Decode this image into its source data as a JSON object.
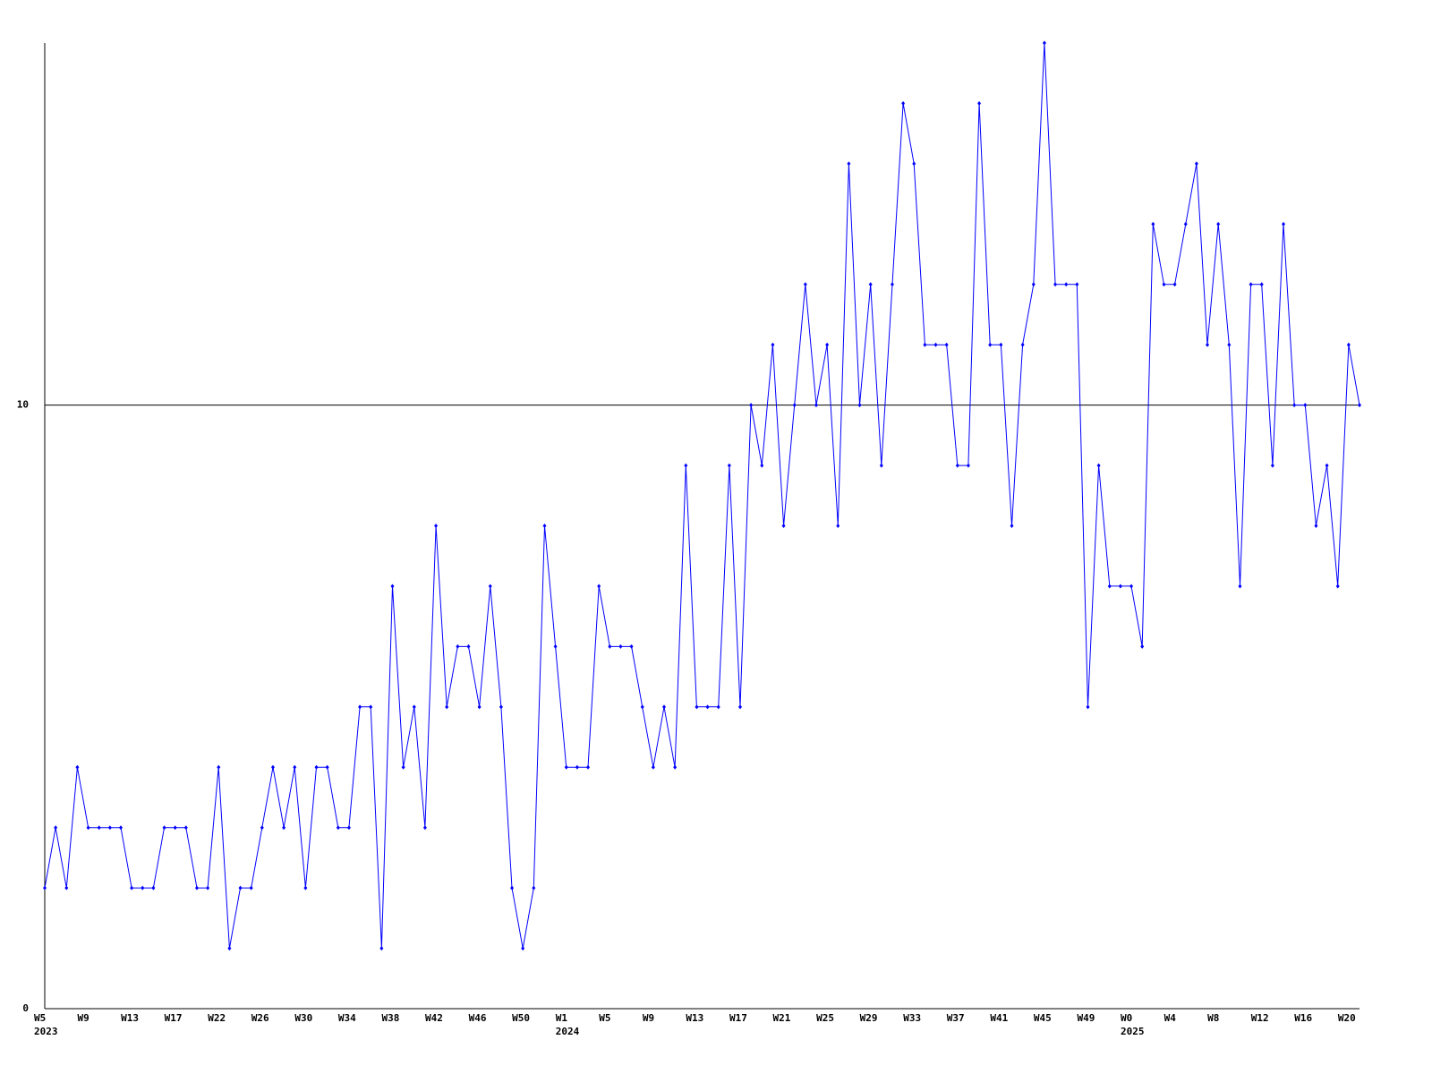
{
  "chart_data": {
    "type": "line",
    "categories": [
      "W5",
      null,
      null,
      null,
      "W9",
      null,
      null,
      null,
      "W13",
      null,
      null,
      null,
      "W17",
      null,
      null,
      null,
      "W22",
      null,
      null,
      null,
      "W26",
      null,
      null,
      null,
      "W30",
      null,
      null,
      null,
      "W34",
      null,
      null,
      null,
      "W38",
      null,
      null,
      null,
      "W42",
      null,
      null,
      null,
      "W46",
      null,
      null,
      null,
      "W50",
      null,
      null,
      null,
      "W1",
      null,
      null,
      null,
      "W5",
      null,
      null,
      null,
      "W9",
      null,
      null,
      null,
      "W13",
      null,
      null,
      null,
      "W17",
      null,
      null,
      null,
      "W21",
      null,
      null,
      null,
      "W25",
      null,
      null,
      null,
      "W29",
      null,
      null,
      null,
      "W33",
      null,
      null,
      null,
      "W37",
      null,
      null,
      null,
      "W41",
      null,
      null,
      null,
      "W45",
      null,
      null,
      null,
      "W49",
      null,
      null,
      null,
      "W0",
      null,
      null,
      null,
      "W4",
      null,
      null,
      null,
      "W8",
      null,
      null,
      null,
      "W12",
      null,
      null,
      null,
      "W16",
      null,
      null,
      null,
      "W20",
      null
    ],
    "category_years": [
      "2023",
      null,
      null,
      null,
      null,
      null,
      null,
      null,
      null,
      null,
      null,
      null,
      null,
      null,
      null,
      null,
      null,
      null,
      null,
      null,
      null,
      null,
      null,
      null,
      null,
      null,
      null,
      null,
      null,
      null,
      null,
      null,
      null,
      null,
      null,
      null,
      null,
      null,
      null,
      null,
      null,
      null,
      null,
      null,
      null,
      null,
      null,
      null,
      "2024",
      null,
      null,
      null,
      null,
      null,
      null,
      null,
      null,
      null,
      null,
      null,
      null,
      null,
      null,
      null,
      null,
      null,
      null,
      null,
      null,
      null,
      null,
      null,
      null,
      null,
      null,
      null,
      null,
      null,
      null,
      null,
      null,
      null,
      null,
      null,
      null,
      null,
      null,
      null,
      null,
      null,
      null,
      null,
      null,
      null,
      null,
      null,
      null,
      null,
      null,
      null,
      "2025",
      null,
      null,
      null,
      null,
      null,
      null,
      null,
      null,
      null,
      null,
      null,
      null,
      null,
      null,
      null,
      null,
      null,
      null,
      null,
      null,
      null
    ],
    "series": [
      {
        "color": "#0000ff",
        "values": [
          2,
          3,
          2,
          4,
          3,
          3,
          3,
          3,
          2,
          2,
          2,
          3,
          3,
          3,
          2,
          2,
          4,
          1,
          2,
          2,
          3,
          4,
          3,
          4,
          2,
          4,
          4,
          3,
          3,
          5,
          5,
          1,
          7,
          4,
          5,
          3,
          8,
          5,
          6,
          6,
          5,
          7,
          5,
          2,
          1,
          2,
          8,
          6,
          4,
          4,
          4,
          7,
          6,
          6,
          6,
          5,
          4,
          5,
          4,
          9,
          5,
          5,
          5,
          9,
          5,
          10,
          9,
          11,
          8,
          10,
          12,
          10,
          11,
          8,
          14,
          10,
          12,
          9,
          12,
          15,
          14,
          11,
          11,
          11,
          9,
          9,
          15,
          11,
          11,
          8,
          11,
          12,
          16,
          12,
          12,
          12,
          5,
          9,
          7,
          7,
          7,
          6,
          13,
          12,
          12,
          13,
          14,
          11,
          13,
          11,
          7,
          12,
          12,
          9,
          13,
          10,
          10,
          8,
          9,
          7,
          11,
          10
        ]
      }
    ],
    "ylim": [
      0,
      16
    ],
    "yticks": [
      0,
      10
    ],
    "grid": true
  }
}
